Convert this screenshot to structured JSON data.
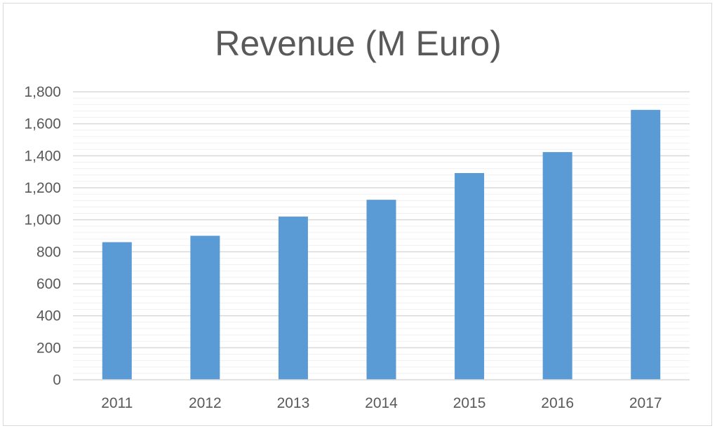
{
  "chart_data": {
    "type": "bar",
    "title": "Revenue (M Euro)",
    "xlabel": "",
    "ylabel": "",
    "categories": [
      "2011",
      "2012",
      "2013",
      "2014",
      "2015",
      "2016",
      "2017"
    ],
    "values": [
      860,
      900,
      1020,
      1125,
      1292,
      1423,
      1687
    ],
    "ylim": [
      0,
      1800
    ],
    "yticks": [
      0,
      200,
      400,
      600,
      800,
      1000,
      1200,
      1400,
      1600,
      1800
    ],
    "ytick_labels": [
      "0",
      "200",
      "400",
      "600",
      "800",
      "1,000",
      "1,200",
      "1,400",
      "1,600",
      "1,800"
    ],
    "grid": true,
    "minor_grid": true,
    "legend": "none",
    "colors": {
      "bar": "#5b9bd5",
      "major_grid": "#d9d9d9",
      "minor_grid": "#f0f0f0",
      "text": "#595959",
      "axis": "#d9d9d9"
    }
  }
}
